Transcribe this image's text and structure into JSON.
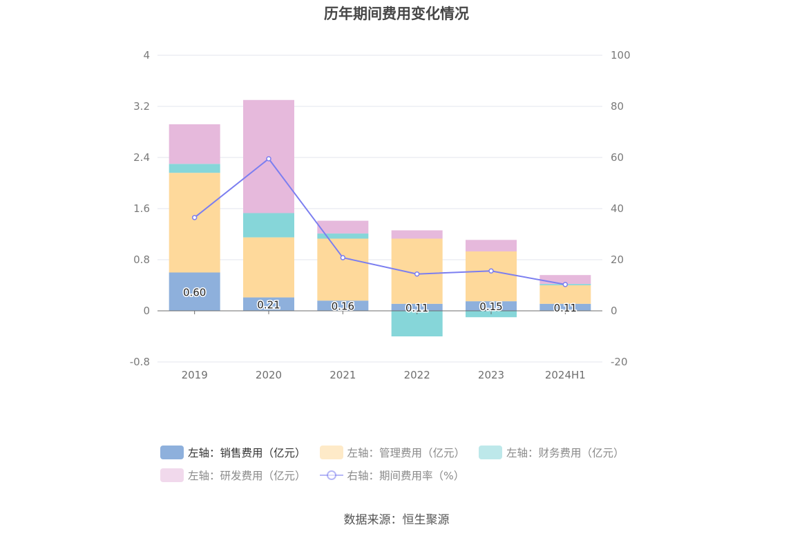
{
  "title": "历年期间费用变化情况",
  "source": "数据来源：恒生聚源",
  "colors": {
    "sales": "#8eb0dc",
    "admin": "#fed99b",
    "finance": "#86d6d9",
    "rnd": "#e6b9dc",
    "rate": "#7b7ef0",
    "grid": "#e3e6ee",
    "axis": "#6b6b6b"
  },
  "legend": [
    {
      "key": "sales",
      "label": "左轴：销售费用（亿元）",
      "type": "bar",
      "active": true
    },
    {
      "key": "admin",
      "label": "左轴：管理费用（亿元）",
      "type": "bar",
      "active": false
    },
    {
      "key": "finance",
      "label": "左轴：财务费用（亿元）",
      "type": "bar",
      "active": false
    },
    {
      "key": "rnd",
      "label": "左轴：研发费用（亿元）",
      "type": "bar",
      "active": false
    },
    {
      "key": "rate",
      "label": "右轴：期间费用率（%）",
      "type": "line",
      "active": false
    }
  ],
  "chart_data": {
    "type": "bar",
    "title": "历年期间费用变化情况",
    "categories": [
      "2019",
      "2020",
      "2021",
      "2022",
      "2023",
      "2024H1"
    ],
    "left_axis": {
      "ylim": [
        -0.8,
        4
      ],
      "ticks": [
        "-0.8",
        "0",
        "0.8",
        "1.6",
        "2.4",
        "3.2",
        "4"
      ]
    },
    "right_axis": {
      "ylim": [
        -20,
        100
      ],
      "ticks": [
        "-20",
        "0",
        "20",
        "40",
        "60",
        "80",
        "100"
      ]
    },
    "series": [
      {
        "key": "sales",
        "name": "左轴：销售费用（亿元）",
        "axis": "left",
        "type": "bar",
        "values": [
          0.6,
          0.21,
          0.16,
          0.11,
          0.15,
          0.11
        ],
        "labels": [
          "0.60",
          "0.21",
          "0.16",
          "0.11",
          "0.15",
          "0.11"
        ]
      },
      {
        "key": "admin",
        "name": "左轴：管理费用（亿元）",
        "axis": "left",
        "type": "bar",
        "values": [
          1.56,
          0.94,
          0.97,
          1.02,
          0.78,
          0.29
        ]
      },
      {
        "key": "finance",
        "name": "左轴：财务费用（亿元）",
        "axis": "left",
        "type": "bar",
        "values": [
          0.14,
          0.38,
          0.08,
          -0.4,
          -0.1,
          0.02
        ]
      },
      {
        "key": "rnd",
        "name": "左轴：研发费用（亿元）",
        "axis": "left",
        "type": "bar",
        "values": [
          0.62,
          1.77,
          0.2,
          0.13,
          0.18,
          0.14
        ]
      },
      {
        "key": "rate",
        "name": "右轴：期间费用率（%）",
        "axis": "right",
        "type": "line",
        "values": [
          36.5,
          59.5,
          20.8,
          14.4,
          15.6,
          10.3
        ]
      }
    ],
    "grid": true,
    "legend_position": "bottom"
  }
}
